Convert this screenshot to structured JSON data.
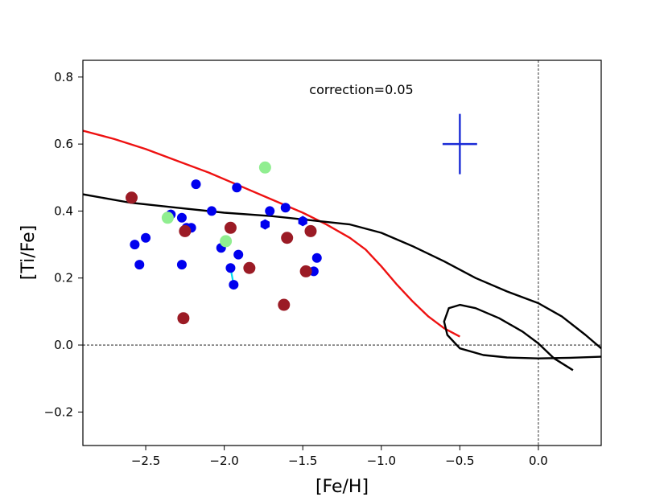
{
  "chart_data": {
    "type": "scatter",
    "title": "",
    "xlabel": "[Fe/H]",
    "ylabel": "[Ti/Fe]",
    "xlim": [
      -2.9,
      0.4
    ],
    "ylim": [
      -0.3,
      0.85
    ],
    "xticks": [
      -2.5,
      -2.0,
      -1.5,
      -1.0,
      -0.5,
      0.0
    ],
    "xtick_labels": [
      "−2.5",
      "−2.0",
      "−1.5",
      "−1.0",
      "−0.5",
      "0.0"
    ],
    "yticks": [
      -0.2,
      0.0,
      0.2,
      0.4,
      0.6,
      0.8
    ],
    "ytick_labels": [
      "−0.2",
      "0.0",
      "0.2",
      "0.4",
      "0.6",
      "0.8"
    ],
    "annotation": "correction=0.05",
    "reference_lines": {
      "horizontal_y": 0.0,
      "vertical_x": 0.0,
      "style": "dashed"
    },
    "grid": false,
    "colors": {
      "blue": "#0000ee",
      "darkred": "#9b1b25",
      "lightgreen": "#90ee90",
      "cyan": "#00ddee",
      "red_curve": "#ee1111",
      "black_curve": "#000000",
      "errorbar": "#1a2bd6"
    },
    "errorbar": {
      "x": -0.5,
      "y": 0.6,
      "xerr": 0.11,
      "yerr": 0.09
    },
    "series": [
      {
        "marker": "circle",
        "color": "blue",
        "points": [
          [
            -2.57,
            0.3
          ],
          [
            -2.54,
            0.24
          ],
          [
            -2.5,
            0.32
          ],
          [
            -2.34,
            0.39
          ],
          [
            -2.27,
            0.38
          ],
          [
            -2.27,
            0.24
          ],
          [
            -2.24,
            0.35
          ],
          [
            -2.21,
            0.35
          ],
          [
            -2.18,
            0.48
          ],
          [
            -2.08,
            0.4
          ],
          [
            -2.02,
            0.29
          ],
          [
            -1.96,
            0.23
          ],
          [
            -1.94,
            0.18
          ],
          [
            -1.92,
            0.47
          ],
          [
            -1.91,
            0.27
          ],
          [
            -1.71,
            0.4
          ],
          [
            -1.61,
            0.41
          ],
          [
            -1.43,
            0.22
          ],
          [
            -1.41,
            0.26
          ]
        ]
      },
      {
        "marker": "hexagon",
        "color": "blue",
        "points": [
          [
            -1.74,
            0.36
          ],
          [
            -1.5,
            0.37
          ]
        ]
      },
      {
        "marker": "circle",
        "color": "darkred",
        "points": [
          [
            -2.59,
            0.44
          ],
          [
            -2.25,
            0.34
          ],
          [
            -2.26,
            0.08
          ],
          [
            -1.96,
            0.35
          ],
          [
            -1.84,
            0.23
          ],
          [
            -1.62,
            0.12
          ],
          [
            -1.6,
            0.32
          ],
          [
            -1.48,
            0.22
          ],
          [
            -1.45,
            0.34
          ]
        ]
      },
      {
        "marker": "circle",
        "color": "lightgreen",
        "points": [
          [
            -2.36,
            0.38
          ],
          [
            -1.99,
            0.31
          ],
          [
            -1.74,
            0.53
          ]
        ]
      }
    ],
    "connectors": [
      {
        "color": "cyan",
        "points": [
          [
            -1.96,
            0.23
          ],
          [
            -1.94,
            0.18
          ]
        ]
      },
      {
        "color": "cyan",
        "points": [
          [
            -2.27,
            0.25
          ],
          [
            -2.26,
            0.23
          ]
        ]
      }
    ],
    "curves": [
      {
        "color": "red_curve",
        "points": [
          [
            -2.9,
            0.64
          ],
          [
            -2.7,
            0.615
          ],
          [
            -2.5,
            0.585
          ],
          [
            -2.3,
            0.55
          ],
          [
            -2.1,
            0.515
          ],
          [
            -1.9,
            0.475
          ],
          [
            -1.7,
            0.435
          ],
          [
            -1.5,
            0.395
          ],
          [
            -1.35,
            0.36
          ],
          [
            -1.2,
            0.32
          ],
          [
            -1.1,
            0.285
          ],
          [
            -1.0,
            0.235
          ],
          [
            -0.9,
            0.18
          ],
          [
            -0.8,
            0.13
          ],
          [
            -0.7,
            0.085
          ],
          [
            -0.6,
            0.05
          ],
          [
            -0.5,
            0.025
          ]
        ]
      },
      {
        "color": "black_curve",
        "points": [
          [
            -2.9,
            0.45
          ],
          [
            -2.6,
            0.425
          ],
          [
            -2.3,
            0.41
          ],
          [
            -2.0,
            0.395
          ],
          [
            -1.7,
            0.385
          ],
          [
            -1.4,
            0.37
          ],
          [
            -1.2,
            0.36
          ],
          [
            -1.0,
            0.335
          ],
          [
            -0.8,
            0.295
          ],
          [
            -0.6,
            0.25
          ],
          [
            -0.4,
            0.2
          ],
          [
            -0.2,
            0.16
          ],
          [
            0.0,
            0.125
          ],
          [
            0.15,
            0.085
          ],
          [
            0.3,
            0.03
          ],
          [
            0.4,
            -0.01
          ]
        ]
      },
      {
        "color": "black_curve",
        "points": [
          [
            0.22,
            -0.075
          ],
          [
            0.1,
            -0.04
          ],
          [
            0.0,
            0.005
          ],
          [
            -0.1,
            0.04
          ],
          [
            -0.25,
            0.08
          ],
          [
            -0.4,
            0.11
          ],
          [
            -0.5,
            0.12
          ],
          [
            -0.57,
            0.11
          ],
          [
            -0.6,
            0.07
          ],
          [
            -0.58,
            0.03
          ],
          [
            -0.5,
            -0.01
          ],
          [
            -0.35,
            -0.03
          ],
          [
            -0.2,
            -0.037
          ],
          [
            0.0,
            -0.04
          ],
          [
            0.2,
            -0.038
          ],
          [
            0.4,
            -0.035
          ]
        ]
      }
    ]
  }
}
